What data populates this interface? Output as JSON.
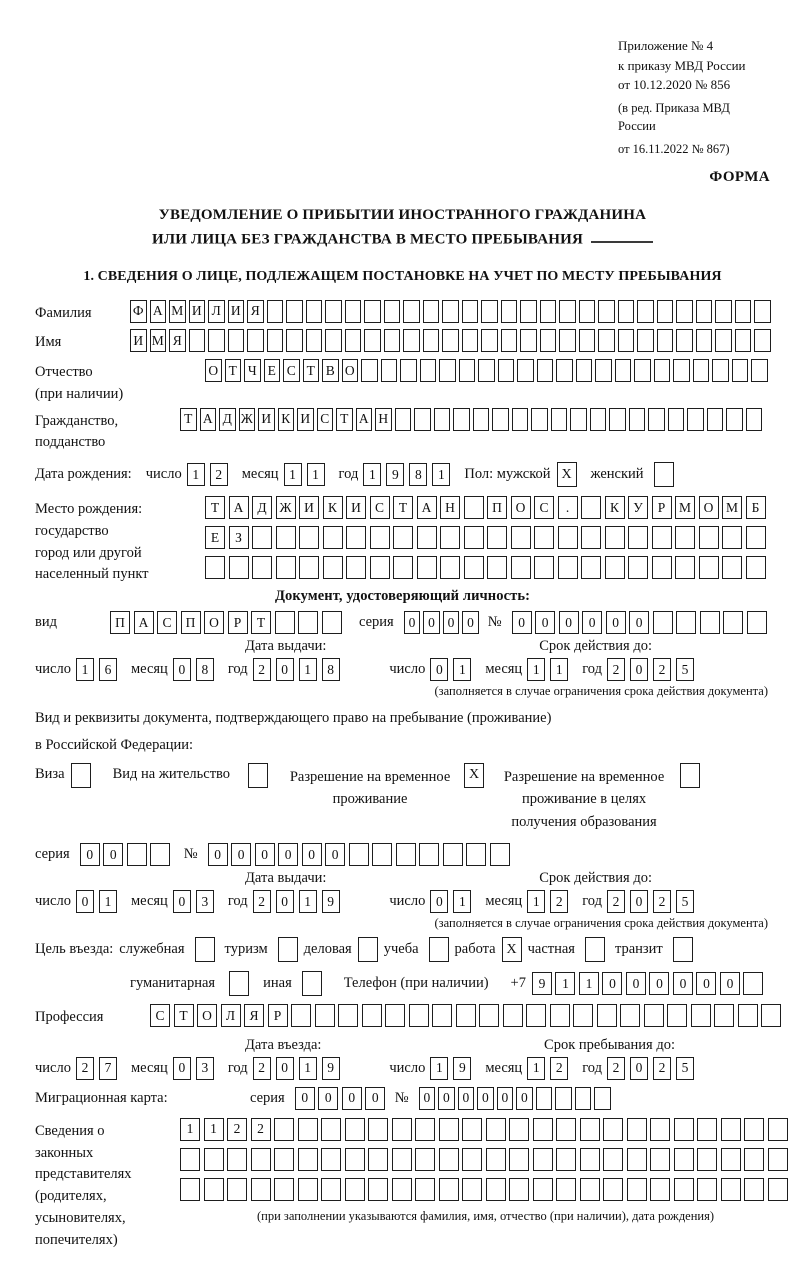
{
  "doc_header": {
    "line1": "Приложение № 4",
    "line2": "к приказу МВД России",
    "line3": "от 10.12.2020 № 856",
    "line4": "(в ред. Приказа МВД России",
    "line5": "от 16.11.2022 № 867)",
    "form_label": "ФОРМА"
  },
  "title": {
    "line1": "УВЕДОМЛЕНИЕ О ПРИБЫТИИ ИНОСТРАННОГО ГРАЖДАНИНА",
    "line2": "ИЛИ ЛИЦА БЕЗ ГРАЖДАНСТВА В МЕСТО ПРЕБЫВАНИЯ"
  },
  "section1": {
    "heading": "1. СВЕДЕНИЯ О ЛИЦЕ, ПОДЛЕЖАЩЕМ ПОСТАНОВКЕ НА УЧЕТ ПО МЕСТУ ПРЕБЫВАНИЯ"
  },
  "labels": {
    "day": "число",
    "month": "месяц",
    "year": "год",
    "series": "серия",
    "number": "№",
    "issue_date": "Дата выдачи:",
    "valid_until": "Срок действия до:",
    "validity_note": "(заполняется в случае ограничения срока действия документа)"
  },
  "surname": {
    "label": "Фамилия",
    "row": {
      "cells": 33,
      "value": "ФАМИЛИЯ"
    }
  },
  "firstname": {
    "label": "Имя",
    "row": {
      "cells": 33,
      "value": "ИМЯ"
    }
  },
  "patronymic": {
    "label1": "Отчество",
    "label2": "(при наличии)",
    "row": {
      "cells": 29,
      "value": "ОТЧЕСТВО"
    }
  },
  "citizenship": {
    "label1": "Гражданство,",
    "label2": "подданство",
    "row": {
      "cells": 30,
      "value": "ТАДЖИКИСТАН"
    }
  },
  "birth_date": {
    "label": "Дата рождения:",
    "d": {
      "cells": 2,
      "value": "12"
    },
    "m": {
      "cells": 2,
      "value": "11"
    },
    "y": {
      "cells": 4,
      "value": "1981"
    },
    "sex_label": "Пол: мужской",
    "male_mark": "X",
    "female_label": "женский",
    "female_mark": ""
  },
  "birth_place": {
    "label1": "Место рождения:",
    "label2": "государство",
    "label3": "город или другой",
    "label4": "населенный пункт",
    "row1": {
      "cells": 24,
      "value": "ТАДЖИКИСТАН ПОС. КУРМОМБ"
    },
    "row2": {
      "cells": 24,
      "value": "ЕЗ"
    },
    "row3": {
      "cells": 24,
      "value": ""
    }
  },
  "id_doc": {
    "heading": "Документ, удостоверяющий личность:",
    "kind_label": "вид",
    "kind_row": {
      "cells": 10,
      "value": "ПАСПОРТ"
    },
    "series_row": {
      "cells": 4,
      "value": "0000"
    },
    "number_row": {
      "cells": 11,
      "value": "000000"
    },
    "issue": {
      "d": {
        "cells": 2,
        "value": "16"
      },
      "m": {
        "cells": 2,
        "value": "08"
      },
      "y": {
        "cells": 4,
        "value": "2018"
      }
    },
    "until": {
      "d": {
        "cells": 2,
        "value": "01"
      },
      "m": {
        "cells": 2,
        "value": "11"
      },
      "y": {
        "cells": 4,
        "value": "2025"
      }
    }
  },
  "residence_doc": {
    "intro1": "Вид и реквизиты документа, подтверждающего право на пребывание (проживание)",
    "intro2": "в Российской Федерации:",
    "visa_label": "Виза",
    "visa_mark": "",
    "permit_label": "Вид на жительство",
    "permit_mark": "",
    "rvp_line1": "Разрешение на временное",
    "rvp_line2": "проживание",
    "rvp_mark": "X",
    "rvp_edu_line1": "Разрешение на временное",
    "rvp_edu_line2": "проживание в целях",
    "rvp_edu_line3": "получения образования",
    "rvp_edu_mark": "",
    "series_row": {
      "cells": 4,
      "value": "00"
    },
    "number_row": {
      "cells": 13,
      "value": "000000"
    },
    "issue": {
      "d": {
        "cells": 2,
        "value": "01"
      },
      "m": {
        "cells": 2,
        "value": "03"
      },
      "y": {
        "cells": 4,
        "value": "2019"
      }
    },
    "until": {
      "d": {
        "cells": 2,
        "value": "01"
      },
      "m": {
        "cells": 2,
        "value": "12"
      },
      "y": {
        "cells": 4,
        "value": "2025"
      }
    }
  },
  "purpose": {
    "label": "Цель въезда:",
    "o1": {
      "label": "служебная",
      "mark": ""
    },
    "o2": {
      "label": "туризм",
      "mark": ""
    },
    "o3": {
      "label": "деловая",
      "mark": ""
    },
    "o4": {
      "label": "учеба",
      "mark": ""
    },
    "o5": {
      "label": "работа",
      "mark": "X"
    },
    "o6": {
      "label": "частная",
      "mark": ""
    },
    "o7": {
      "label": "транзит",
      "mark": ""
    },
    "o8": {
      "label": "гуманитарная",
      "mark": ""
    },
    "o9": {
      "label": "иная",
      "mark": ""
    },
    "phone_label": "Телефон (при наличии)",
    "phone_prefix": "+7",
    "phone_row": {
      "cells": 10,
      "value": "911000000"
    }
  },
  "profession": {
    "label": "Профессия",
    "row": {
      "cells": 27,
      "value": "СТОЛЯР"
    }
  },
  "entry": {
    "date_label": "Дата въезда:",
    "stay_label": "Срок пребывания до:",
    "date": {
      "d": {
        "cells": 2,
        "value": "27"
      },
      "m": {
        "cells": 2,
        "value": "03"
      },
      "y": {
        "cells": 4,
        "value": "2019"
      }
    },
    "until": {
      "d": {
        "cells": 2,
        "value": "19"
      },
      "m": {
        "cells": 2,
        "value": "12"
      },
      "y": {
        "cells": 4,
        "value": "2025"
      }
    }
  },
  "migration_card": {
    "label": "Миграционная карта:",
    "series_row": {
      "cells": 4,
      "value": "0000"
    },
    "number_row": {
      "cells": 10,
      "value": "000000"
    }
  },
  "representatives": {
    "label1": "Сведения о",
    "label2": "законных",
    "label3": "представителях",
    "label4": "(родителях,",
    "label5": "усыновителях,",
    "label6": "попечителях)",
    "row1": {
      "cells": 26,
      "value": "1122"
    },
    "row2": {
      "cells": 26,
      "value": ""
    },
    "row3": {
      "cells": 26,
      "value": ""
    },
    "note": "(при заполнении указываются фамилия, имя, отчество (при наличии), дата рождения)"
  }
}
